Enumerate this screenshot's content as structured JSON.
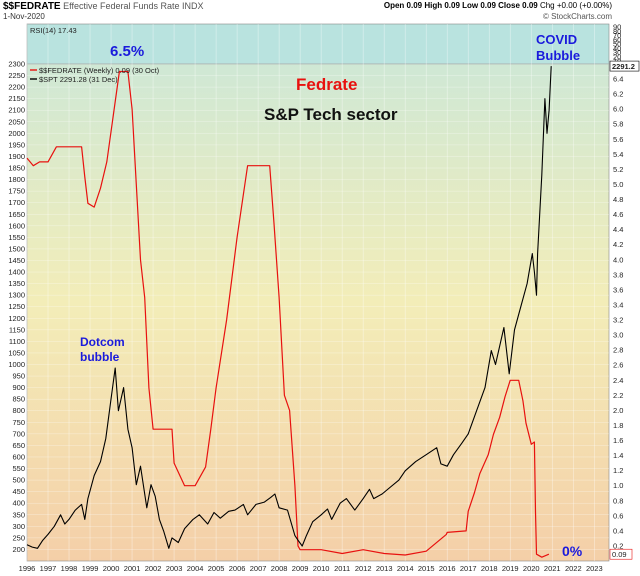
{
  "header": {
    "symbol": "$$FEDRATE",
    "description": "Effective Federal Funds Rate INDX",
    "date": "1-Nov-2020",
    "ohlc": "Open 0.09  High 0.09  Low 0.09  Close 0.09",
    "change": "Chg +0.00 (+0.00%)",
    "brand": "© StockCharts.com"
  },
  "colors": {
    "fedrate": "#e8110f",
    "spt": "#000000",
    "ann_blue": "#1a1adc",
    "ann_red": "#e8110f",
    "rsi_bg": "#b9e3df",
    "bg_top": "#cfe8d5",
    "bg_mid": "#f3edb8",
    "bg_bottom": "#f4cfa8"
  },
  "chart_data": {
    "type": "line",
    "title": "Fedrate",
    "subtitle": "S&P Tech sector",
    "rsi_label": "RSI(14) 17.43",
    "rsi_ticks": [
      "90",
      "80",
      "70",
      "60",
      "50",
      "40",
      "30",
      "20",
      "10"
    ],
    "x_tick_labels": [
      "1996",
      "1997",
      "1998",
      "1999",
      "2000",
      "2001",
      "2002",
      "2003",
      "2004",
      "2005",
      "2006",
      "2007",
      "2008",
      "2009",
      "2010",
      "2011",
      "2012",
      "2013",
      "2014",
      "2015",
      "2016",
      "2017",
      "2018",
      "2019",
      "2020",
      "2021",
      "2022",
      "2023"
    ],
    "left_axis": {
      "min": 150,
      "max": 2300,
      "ticks": [
        200,
        250,
        300,
        350,
        400,
        450,
        500,
        550,
        600,
        650,
        700,
        750,
        800,
        850,
        900,
        950,
        1000,
        1050,
        1100,
        1150,
        1200,
        1250,
        1300,
        1350,
        1400,
        1450,
        1500,
        1550,
        1600,
        1650,
        1700,
        1750,
        1800,
        1850,
        1900,
        1950,
        2000,
        2050,
        2100,
        2150,
        2200,
        2250,
        2300
      ]
    },
    "right_axis": {
      "min": 0.0,
      "max": 6.6,
      "ticks": [
        "0.2",
        "0.4",
        "0.6",
        "0.8",
        "1.0",
        "1.2",
        "1.4",
        "1.6",
        "1.8",
        "2.0",
        "2.2",
        "2.4",
        "2.6",
        "2.8",
        "3.0",
        "3.2",
        "3.4",
        "3.6",
        "3.8",
        "4.0",
        "4.2",
        "4.4",
        "4.6",
        "4.8",
        "5.0",
        "5.2",
        "5.4",
        "5.6",
        "5.8",
        "6.0",
        "6.2",
        "6.4"
      ]
    },
    "right_last_labels": {
      "spt": "2291.2",
      "fedrate": "0.09"
    },
    "series": [
      {
        "name": "$$FEDRATE (Weekly) 0.09 (30 Oct)",
        "axis": "right",
        "points": [
          [
            1996.0,
            5.35
          ],
          [
            1996.3,
            5.25
          ],
          [
            1996.6,
            5.3
          ],
          [
            1997.0,
            5.3
          ],
          [
            1997.4,
            5.5
          ],
          [
            1998.0,
            5.5
          ],
          [
            1998.6,
            5.5
          ],
          [
            1998.75,
            5.1
          ],
          [
            1998.9,
            4.75
          ],
          [
            1999.2,
            4.7
          ],
          [
            1999.5,
            4.95
          ],
          [
            1999.8,
            5.3
          ],
          [
            2000.0,
            5.7
          ],
          [
            2000.4,
            6.5
          ],
          [
            2000.8,
            6.5
          ],
          [
            2001.0,
            6.0
          ],
          [
            2001.2,
            5.0
          ],
          [
            2001.4,
            4.0
          ],
          [
            2001.6,
            3.5
          ],
          [
            2001.8,
            2.3
          ],
          [
            2002.0,
            1.75
          ],
          [
            2002.9,
            1.75
          ],
          [
            2003.0,
            1.3
          ],
          [
            2003.5,
            1.0
          ],
          [
            2004.0,
            1.0
          ],
          [
            2004.5,
            1.25
          ],
          [
            2004.75,
            1.75
          ],
          [
            2005.0,
            2.3
          ],
          [
            2005.5,
            3.2
          ],
          [
            2006.0,
            4.3
          ],
          [
            2006.5,
            5.25
          ],
          [
            2007.0,
            5.25
          ],
          [
            2007.55,
            5.25
          ],
          [
            2007.75,
            4.5
          ],
          [
            2008.0,
            3.5
          ],
          [
            2008.25,
            2.2
          ],
          [
            2008.5,
            2.0
          ],
          [
            2008.75,
            1.0
          ],
          [
            2008.9,
            0.2
          ],
          [
            2009.0,
            0.15
          ],
          [
            2010.0,
            0.15
          ],
          [
            2011.0,
            0.1
          ],
          [
            2012.0,
            0.15
          ],
          [
            2013.0,
            0.1
          ],
          [
            2014.0,
            0.08
          ],
          [
            2015.0,
            0.13
          ],
          [
            2015.95,
            0.35
          ],
          [
            2016.0,
            0.38
          ],
          [
            2016.9,
            0.4
          ],
          [
            2017.0,
            0.66
          ],
          [
            2017.3,
            0.91
          ],
          [
            2017.55,
            1.16
          ],
          [
            2017.95,
            1.41
          ],
          [
            2018.2,
            1.68
          ],
          [
            2018.5,
            1.91
          ],
          [
            2018.75,
            2.18
          ],
          [
            2019.0,
            2.4
          ],
          [
            2019.4,
            2.4
          ],
          [
            2019.6,
            2.13
          ],
          [
            2019.75,
            1.83
          ],
          [
            2020.0,
            1.55
          ],
          [
            2020.15,
            1.58
          ],
          [
            2020.2,
            0.65
          ],
          [
            2020.25,
            0.09
          ],
          [
            2020.5,
            0.05
          ],
          [
            2020.84,
            0.09
          ]
        ]
      },
      {
        "name": "$SPT 2291.28 (31 Dec)",
        "axis": "left",
        "points": [
          [
            1996.0,
            220
          ],
          [
            1996.25,
            210
          ],
          [
            1996.5,
            205
          ],
          [
            1996.75,
            240
          ],
          [
            1997.0,
            265
          ],
          [
            1997.3,
            300
          ],
          [
            1997.6,
            350
          ],
          [
            1997.8,
            310
          ],
          [
            1998.0,
            330
          ],
          [
            1998.3,
            370
          ],
          [
            1998.6,
            395
          ],
          [
            1998.75,
            330
          ],
          [
            1998.9,
            420
          ],
          [
            1999.2,
            520
          ],
          [
            1999.5,
            580
          ],
          [
            1999.75,
            680
          ],
          [
            2000.0,
            850
          ],
          [
            2000.2,
            985
          ],
          [
            2000.35,
            800
          ],
          [
            2000.6,
            900
          ],
          [
            2000.8,
            720
          ],
          [
            2001.0,
            640
          ],
          [
            2001.2,
            480
          ],
          [
            2001.4,
            560
          ],
          [
            2001.7,
            380
          ],
          [
            2001.9,
            480
          ],
          [
            2002.1,
            430
          ],
          [
            2002.3,
            330
          ],
          [
            2002.5,
            280
          ],
          [
            2002.75,
            205
          ],
          [
            2002.9,
            250
          ],
          [
            2003.2,
            230
          ],
          [
            2003.5,
            290
          ],
          [
            2003.9,
            330
          ],
          [
            2004.2,
            350
          ],
          [
            2004.6,
            310
          ],
          [
            2004.9,
            360
          ],
          [
            2005.2,
            335
          ],
          [
            2005.6,
            365
          ],
          [
            2005.9,
            370
          ],
          [
            2006.3,
            395
          ],
          [
            2006.5,
            350
          ],
          [
            2006.9,
            395
          ],
          [
            2007.3,
            405
          ],
          [
            2007.6,
            425
          ],
          [
            2007.8,
            440
          ],
          [
            2008.0,
            380
          ],
          [
            2008.4,
            370
          ],
          [
            2008.75,
            260
          ],
          [
            2008.9,
            240
          ],
          [
            2009.1,
            215
          ],
          [
            2009.3,
            260
          ],
          [
            2009.6,
            320
          ],
          [
            2010.0,
            350
          ],
          [
            2010.3,
            375
          ],
          [
            2010.5,
            330
          ],
          [
            2010.9,
            400
          ],
          [
            2011.2,
            420
          ],
          [
            2011.6,
            370
          ],
          [
            2012.0,
            420
          ],
          [
            2012.3,
            460
          ],
          [
            2012.5,
            420
          ],
          [
            2012.9,
            440
          ],
          [
            2013.3,
            470
          ],
          [
            2013.7,
            500
          ],
          [
            2014.0,
            540
          ],
          [
            2014.5,
            580
          ],
          [
            2015.0,
            610
          ],
          [
            2015.5,
            640
          ],
          [
            2015.7,
            570
          ],
          [
            2016.0,
            560
          ],
          [
            2016.3,
            610
          ],
          [
            2016.7,
            660
          ],
          [
            2017.0,
            700
          ],
          [
            2017.4,
            800
          ],
          [
            2017.8,
            900
          ],
          [
            2018.1,
            1060
          ],
          [
            2018.3,
            1000
          ],
          [
            2018.7,
            1160
          ],
          [
            2018.95,
            960
          ],
          [
            2019.2,
            1150
          ],
          [
            2019.5,
            1250
          ],
          [
            2019.8,
            1350
          ],
          [
            2020.05,
            1480
          ],
          [
            2020.15,
            1400
          ],
          [
            2020.25,
            1300
          ],
          [
            2020.3,
            1480
          ],
          [
            2020.5,
            1820
          ],
          [
            2020.65,
            2150
          ],
          [
            2020.75,
            2000
          ],
          [
            2020.85,
            2100
          ],
          [
            2020.95,
            2291
          ]
        ]
      }
    ],
    "annotations": {
      "peak_rate": "6.5%",
      "covid_line1": "COVID",
      "covid_line2": "Bubble",
      "dotcom_line1": "Dotcom",
      "dotcom_line2": "bubble",
      "zero_rate": "0%"
    }
  }
}
